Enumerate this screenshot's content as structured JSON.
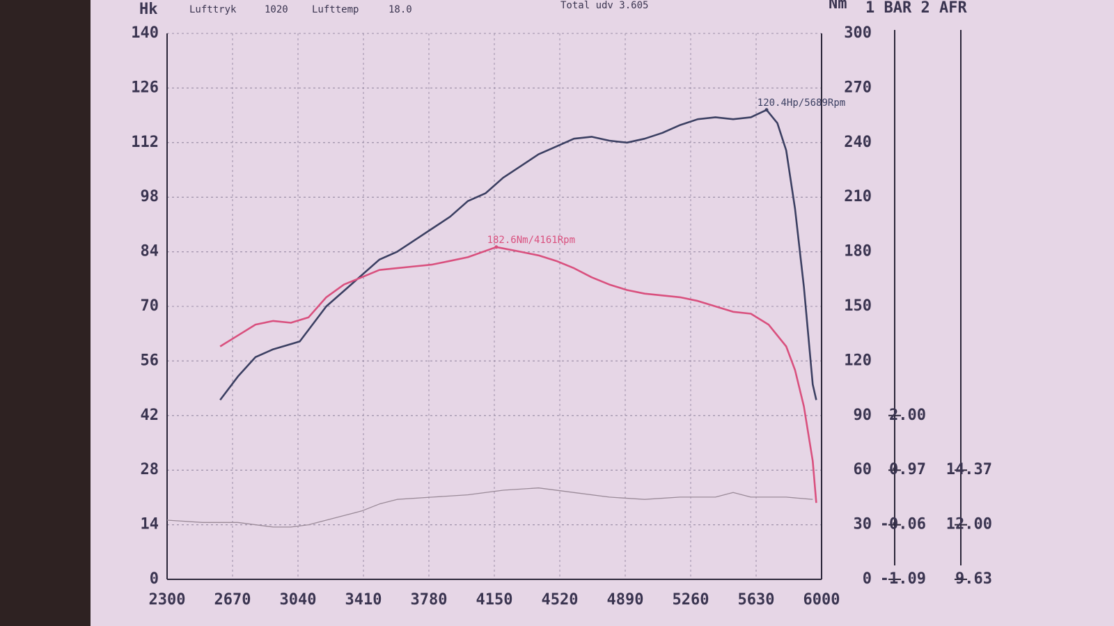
{
  "chart_data": {
    "type": "line",
    "ylabel": "Hk",
    "y2label": "Nm",
    "extra_axes_label": "1 BAR 2 AFR",
    "header_texts": [
      "Lufttryk",
      "1020",
      "Lufttemp",
      "18.0",
      "Total udv 3.605"
    ],
    "xlim": [
      2300,
      6000
    ],
    "xticks": [
      2300,
      2670,
      3040,
      3410,
      3780,
      4150,
      4520,
      4890,
      5260,
      5630,
      6000
    ],
    "ylim": [
      0,
      140
    ],
    "yticks": [
      0,
      14,
      28,
      42,
      56,
      70,
      84,
      98,
      112,
      126,
      140
    ],
    "y2lim": [
      0,
      300
    ],
    "y2ticks": [
      0,
      30,
      60,
      90,
      120,
      150,
      180,
      210,
      240,
      270,
      300
    ],
    "barlim": [
      -1.09,
      9.21
    ],
    "barticks": [
      -1.09,
      -0.06,
      0.97,
      {
        "value": 2,
        "label": "2.00"
      }
    ],
    "afrlim": [
      9.63,
      33.33
    ],
    "afrticks": [
      9.63,
      {
        "value": 12,
        "label": "12.00"
      },
      14.37
    ],
    "grid": true,
    "series": [
      {
        "color": "#3b3f62",
        "axis": "y",
        "x": [
          2600,
          2700,
          2800,
          2900,
          3050,
          3100,
          3200,
          3300,
          3400,
          3500,
          3600,
          3700,
          3800,
          3900,
          4000,
          4100,
          4200,
          4300,
          4400,
          4500,
          4600,
          4700,
          4800,
          4900,
          5000,
          5100,
          5200,
          5300,
          5400,
          5500,
          5600,
          5689,
          5750,
          5800,
          5850,
          5900,
          5950,
          5970
        ],
        "values": [
          46,
          52,
          57,
          59,
          61,
          64,
          70,
          74,
          78,
          82,
          84,
          87,
          90,
          93,
          97,
          99,
          103,
          106,
          109,
          111,
          113,
          113.5,
          112.5,
          112,
          113,
          114.5,
          116.5,
          118,
          118.5,
          118,
          118.5,
          120.4,
          117,
          110,
          95,
          75,
          50,
          46
        ]
      },
      {
        "color": "#d9507e",
        "axis": "y2",
        "x": [
          2600,
          2700,
          2800,
          2900,
          3000,
          3100,
          3200,
          3300,
          3400,
          3500,
          3600,
          3700,
          3800,
          3900,
          4000,
          4161,
          4300,
          4400,
          4500,
          4600,
          4700,
          4800,
          4900,
          5000,
          5100,
          5200,
          5300,
          5400,
          5500,
          5600,
          5700,
          5800,
          5850,
          5900,
          5950,
          5970
        ],
        "values": [
          128,
          134,
          140,
          142,
          141,
          144,
          155,
          162,
          166,
          170,
          171,
          172,
          173,
          175,
          177,
          182.6,
          180,
          178,
          175,
          171,
          166,
          162,
          159,
          157,
          156,
          155,
          153,
          150,
          147,
          146,
          140,
          128,
          115,
          95,
          65,
          42
        ]
      },
      {
        "color": "#9a8a98",
        "axis": "afr",
        "x": [
          2300,
          2500,
          2700,
          2900,
          3000,
          3100,
          3300,
          3400,
          3500,
          3600,
          3800,
          4000,
          4200,
          4400,
          4600,
          4800,
          5000,
          5200,
          5400,
          5500,
          5600,
          5800,
          5950
        ],
        "values": [
          12.2,
          12.1,
          12.1,
          11.9,
          11.9,
          12.0,
          12.4,
          12.6,
          12.9,
          13.1,
          13.2,
          13.3,
          13.5,
          13.6,
          13.4,
          13.2,
          13.1,
          13.2,
          13.2,
          13.4,
          13.2,
          13.2,
          13.1
        ]
      }
    ],
    "annotations": [
      {
        "text": "120.4Hp/5689Rpm",
        "x": 5689,
        "y": 120.4,
        "series": 0
      },
      {
        "text": "182.6Nm/4161Rpm",
        "x": 4161,
        "y": 182.6,
        "series": 1
      }
    ]
  }
}
